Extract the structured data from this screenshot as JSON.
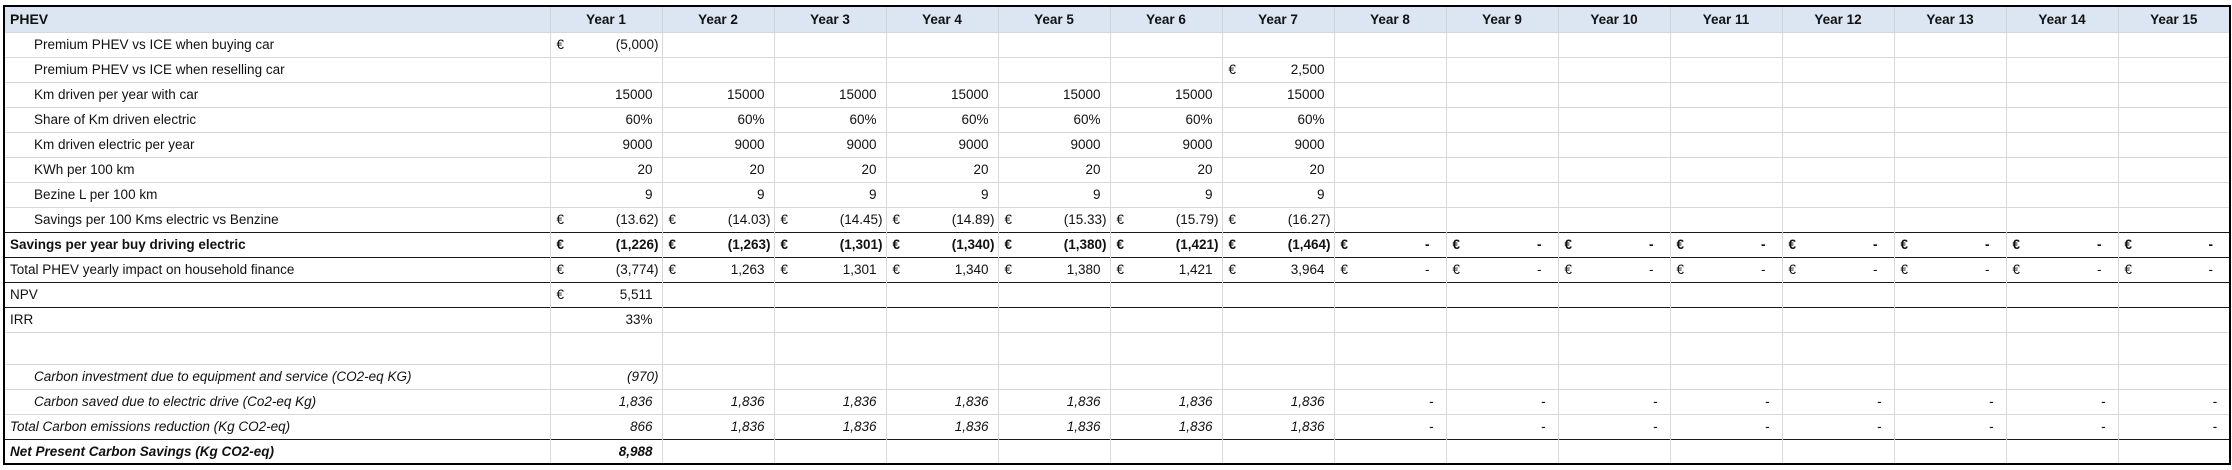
{
  "table": {
    "corner_label": "PHEV",
    "year_headers": [
      "Year 1",
      "Year 2",
      "Year 3",
      "Year 4",
      "Year 5",
      "Year 6",
      "Year 7",
      "Year 8",
      "Year 9",
      "Year 10",
      "Year 11",
      "Year 12",
      "Year 13",
      "Year 14",
      "Year 15"
    ],
    "rows": [
      {
        "label": "Premium PHEV vs ICE when buying car",
        "indent": true,
        "bold": false,
        "italic": false,
        "darktop": false,
        "cells": [
          [
            "€",
            "(5,000)"
          ],
          null,
          null,
          null,
          null,
          null,
          null,
          null,
          null,
          null,
          null,
          null,
          null,
          null,
          null
        ]
      },
      {
        "label": "Premium PHEV vs ICE when reselling car",
        "indent": true,
        "bold": false,
        "italic": false,
        "darktop": false,
        "cells": [
          null,
          null,
          null,
          null,
          null,
          null,
          [
            "€",
            "2,500"
          ],
          null,
          null,
          null,
          null,
          null,
          null,
          null,
          null
        ]
      },
      {
        "label": "Km driven per year with car",
        "indent": true,
        "bold": false,
        "italic": false,
        "darktop": false,
        "cells": [
          [
            "",
            "15000"
          ],
          [
            "",
            "15000"
          ],
          [
            "",
            "15000"
          ],
          [
            "",
            "15000"
          ],
          [
            "",
            "15000"
          ],
          [
            "",
            "15000"
          ],
          [
            "",
            "15000"
          ],
          null,
          null,
          null,
          null,
          null,
          null,
          null,
          null
        ]
      },
      {
        "label": "Share of Km driven electric",
        "indent": true,
        "bold": false,
        "italic": false,
        "darktop": false,
        "cells": [
          [
            "",
            "60%"
          ],
          [
            "",
            "60%"
          ],
          [
            "",
            "60%"
          ],
          [
            "",
            "60%"
          ],
          [
            "",
            "60%"
          ],
          [
            "",
            "60%"
          ],
          [
            "",
            "60%"
          ],
          null,
          null,
          null,
          null,
          null,
          null,
          null,
          null
        ]
      },
      {
        "label": "Km driven electric per year",
        "indent": true,
        "bold": false,
        "italic": false,
        "darktop": false,
        "cells": [
          [
            "",
            "9000"
          ],
          [
            "",
            "9000"
          ],
          [
            "",
            "9000"
          ],
          [
            "",
            "9000"
          ],
          [
            "",
            "9000"
          ],
          [
            "",
            "9000"
          ],
          [
            "",
            "9000"
          ],
          null,
          null,
          null,
          null,
          null,
          null,
          null,
          null
        ]
      },
      {
        "label": "KWh per 100 km",
        "indent": true,
        "bold": false,
        "italic": false,
        "darktop": false,
        "cells": [
          [
            "",
            "20"
          ],
          [
            "",
            "20"
          ],
          [
            "",
            "20"
          ],
          [
            "",
            "20"
          ],
          [
            "",
            "20"
          ],
          [
            "",
            "20"
          ],
          [
            "",
            "20"
          ],
          null,
          null,
          null,
          null,
          null,
          null,
          null,
          null
        ]
      },
      {
        "label": "Bezine L per 100 km",
        "indent": true,
        "bold": false,
        "italic": false,
        "darktop": false,
        "cells": [
          [
            "",
            "9"
          ],
          [
            "",
            "9"
          ],
          [
            "",
            "9"
          ],
          [
            "",
            "9"
          ],
          [
            "",
            "9"
          ],
          [
            "",
            "9"
          ],
          [
            "",
            "9"
          ],
          null,
          null,
          null,
          null,
          null,
          null,
          null,
          null
        ]
      },
      {
        "label": "Savings per 100 Kms electric vs Benzine",
        "indent": true,
        "bold": false,
        "italic": false,
        "darktop": false,
        "cells": [
          [
            "€",
            "(13.62)"
          ],
          [
            "€",
            "(14.03)"
          ],
          [
            "€",
            "(14.45)"
          ],
          [
            "€",
            "(14.89)"
          ],
          [
            "€",
            "(15.33)"
          ],
          [
            "€",
            "(15.79)"
          ],
          [
            "€",
            "(16.27)"
          ],
          null,
          null,
          null,
          null,
          null,
          null,
          null,
          null
        ]
      },
      {
        "label": "Savings per year buy driving electric",
        "indent": false,
        "bold": true,
        "italic": false,
        "darktop": true,
        "cells": [
          [
            "€",
            "(1,226)"
          ],
          [
            "€",
            "(1,263)"
          ],
          [
            "€",
            "(1,301)"
          ],
          [
            "€",
            "(1,340)"
          ],
          [
            "€",
            "(1,380)"
          ],
          [
            "€",
            "(1,421)"
          ],
          [
            "€",
            "(1,464)"
          ],
          [
            "€",
            "-"
          ],
          [
            "€",
            "-"
          ],
          [
            "€",
            "-"
          ],
          [
            "€",
            "-"
          ],
          [
            "€",
            "-"
          ],
          [
            "€",
            "-"
          ],
          [
            "€",
            "-"
          ],
          [
            "€",
            "-"
          ]
        ]
      },
      {
        "label": "Total PHEV yearly impact on household finance",
        "indent": false,
        "bold": false,
        "italic": false,
        "darktop": true,
        "cells": [
          [
            "€",
            "(3,774)"
          ],
          [
            "€",
            "1,263"
          ],
          [
            "€",
            "1,301"
          ],
          [
            "€",
            "1,340"
          ],
          [
            "€",
            "1,380"
          ],
          [
            "€",
            "1,421"
          ],
          [
            "€",
            "3,964"
          ],
          [
            "€",
            "-"
          ],
          [
            "€",
            "-"
          ],
          [
            "€",
            "-"
          ],
          [
            "€",
            "-"
          ],
          [
            "€",
            "-"
          ],
          [
            "€",
            "-"
          ],
          [
            "€",
            "-"
          ],
          [
            "€",
            "-"
          ]
        ]
      },
      {
        "label": "NPV",
        "indent": false,
        "bold": false,
        "italic": false,
        "darktop": true,
        "cells": [
          [
            "€",
            "5,511"
          ],
          null,
          null,
          null,
          null,
          null,
          null,
          null,
          null,
          null,
          null,
          null,
          null,
          null,
          null
        ]
      },
      {
        "label": "IRR",
        "indent": false,
        "bold": false,
        "italic": false,
        "darktop": true,
        "cells": [
          [
            "",
            "33%"
          ],
          null,
          null,
          null,
          null,
          null,
          null,
          null,
          null,
          null,
          null,
          null,
          null,
          null,
          null
        ]
      },
      {
        "label": "",
        "spacer": true,
        "indent": false,
        "bold": false,
        "italic": false,
        "darktop": false,
        "cells": [
          null,
          null,
          null,
          null,
          null,
          null,
          null,
          null,
          null,
          null,
          null,
          null,
          null,
          null,
          null
        ]
      },
      {
        "label": "Carbon investment due to equipment and service (CO2-eq KG)",
        "indent": true,
        "bold": false,
        "italic": true,
        "darktop": false,
        "cells": [
          [
            "",
            "(970)"
          ],
          null,
          null,
          null,
          null,
          null,
          null,
          null,
          null,
          null,
          null,
          null,
          null,
          null,
          null
        ]
      },
      {
        "label": "Carbon saved due to electric drive (Co2-eq Kg)",
        "indent": true,
        "bold": false,
        "italic": true,
        "darktop": false,
        "cells": [
          [
            "",
            "1,836"
          ],
          [
            "",
            "1,836"
          ],
          [
            "",
            "1,836"
          ],
          [
            "",
            "1,836"
          ],
          [
            "",
            "1,836"
          ],
          [
            "",
            "1,836"
          ],
          [
            "",
            "1,836"
          ],
          [
            "",
            "-"
          ],
          [
            "",
            "-"
          ],
          [
            "",
            "-"
          ],
          [
            "",
            "-"
          ],
          [
            "",
            "-"
          ],
          [
            "",
            "-"
          ],
          [
            "",
            "-"
          ],
          [
            "",
            "-"
          ]
        ]
      },
      {
        "label": "Total Carbon emissions reduction (Kg CO2-eq)",
        "indent": false,
        "bold": false,
        "italic": true,
        "darktop": false,
        "cells": [
          [
            "",
            "866"
          ],
          [
            "",
            "1,836"
          ],
          [
            "",
            "1,836"
          ],
          [
            "",
            "1,836"
          ],
          [
            "",
            "1,836"
          ],
          [
            "",
            "1,836"
          ],
          [
            "",
            "1,836"
          ],
          [
            "",
            "-"
          ],
          [
            "",
            "-"
          ],
          [
            "",
            "-"
          ],
          [
            "",
            "-"
          ],
          [
            "",
            "-"
          ],
          [
            "",
            "-"
          ],
          [
            "",
            "-"
          ],
          [
            "",
            "-"
          ]
        ]
      },
      {
        "label": "Net Present Carbon Savings (Kg CO2-eq)",
        "indent": false,
        "bold": true,
        "italic": true,
        "darktop": true,
        "cells": [
          [
            "",
            "8,988"
          ],
          null,
          null,
          null,
          null,
          null,
          null,
          null,
          null,
          null,
          null,
          null,
          null,
          null,
          null
        ]
      }
    ],
    "colors": {
      "header_fill": "#dce6f2",
      "gridline": "#d8d8d8",
      "frame": "#000000"
    }
  }
}
